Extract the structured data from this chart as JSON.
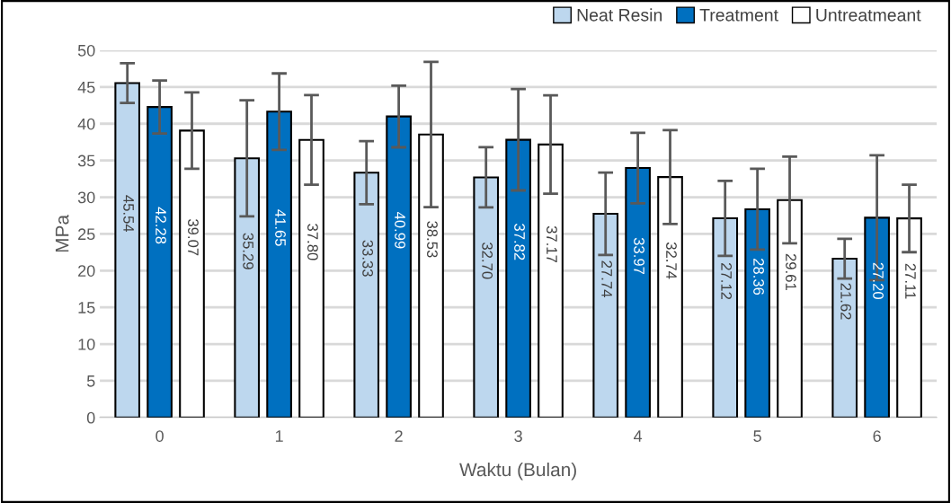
{
  "chart_data": {
    "type": "bar",
    "xlabel": "Waktu (Bulan)",
    "ylabel": "MPa",
    "categories": [
      "0",
      "1",
      "2",
      "3",
      "4",
      "5",
      "6"
    ],
    "series": [
      {
        "name": "Neat Resin",
        "color": "#bdd7ee",
        "values": [
          45.54,
          35.29,
          33.33,
          32.7,
          27.74,
          27.12,
          21.62
        ],
        "errors": [
          2.7,
          7.9,
          4.3,
          4.1,
          5.6,
          5.1,
          2.7
        ],
        "value_labels": [
          "45.54",
          "35.29",
          "33.33",
          "32.70",
          "27.74",
          "27.12",
          "21.62"
        ]
      },
      {
        "name": "Treatment",
        "color": "#0070c0",
        "values": [
          42.28,
          41.65,
          40.99,
          37.82,
          33.97,
          28.36,
          27.2
        ],
        "errors": [
          3.6,
          5.2,
          4.2,
          6.9,
          4.8,
          5.5,
          8.5
        ],
        "value_labels": [
          "42.28",
          "41.65",
          "40.99",
          "37.82",
          "33.97",
          "28.36",
          "27.20"
        ]
      },
      {
        "name": "Untreatmeant",
        "color": "#ffffff",
        "values": [
          39.07,
          37.8,
          38.53,
          37.17,
          32.74,
          29.61,
          27.11
        ],
        "errors": [
          5.2,
          6.1,
          9.9,
          6.7,
          6.4,
          5.9,
          4.6
        ],
        "value_labels": [
          "39.07",
          "37.80",
          "38.53",
          "37.17",
          "32.74",
          "29.61",
          "27.11"
        ]
      }
    ],
    "ylim": [
      0,
      50
    ],
    "yticks": [
      0,
      5,
      10,
      15,
      20,
      25,
      30,
      35,
      40,
      45,
      50
    ],
    "grid": "y",
    "legend": "top right"
  }
}
